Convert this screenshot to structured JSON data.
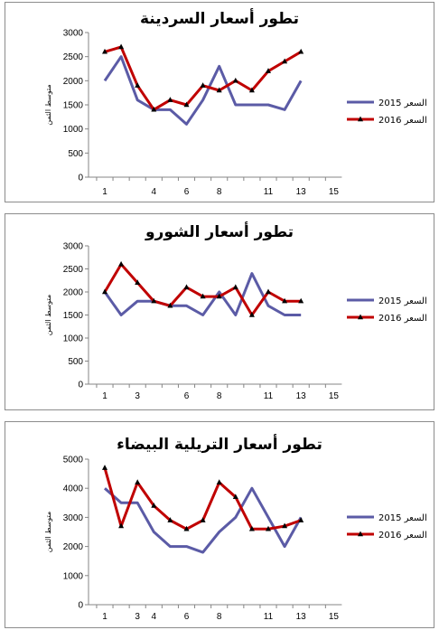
{
  "chart_data": [
    {
      "type": "line",
      "title": "تطور أسعار السردينة",
      "ylabel": "متوسط الثمن",
      "xlabel": "",
      "ylim": [
        0,
        3000
      ],
      "yticks": [
        0,
        500,
        1000,
        1500,
        2000,
        2500,
        3000
      ],
      "x": [
        1,
        2,
        3,
        4,
        5,
        6,
        7,
        8,
        9,
        10,
        11,
        12,
        13,
        14,
        15
      ],
      "xtick_labels": [
        "1",
        "",
        "",
        "4",
        "",
        "6",
        "",
        "8",
        "",
        "",
        "11",
        "",
        "13",
        "",
        "15"
      ],
      "grid": false,
      "legend": "right",
      "series": [
        {
          "name": "2015 السعر",
          "color": "#5b5ba6",
          "marker": "none",
          "values": [
            2000,
            2500,
            1600,
            1400,
            1400,
            1100,
            1600,
            2300,
            1500,
            1500,
            1500,
            1400,
            2000,
            null,
            null
          ]
        },
        {
          "name": "2016 السعر",
          "color": "#c00000",
          "marker": "triangle",
          "values": [
            2600,
            2700,
            1900,
            1400,
            1600,
            1500,
            1900,
            1800,
            2000,
            1800,
            2200,
            2400,
            2600,
            null,
            null
          ]
        }
      ]
    },
    {
      "type": "line",
      "title": "تطور أسعار الشورو",
      "ylabel": "متوسط الثمن",
      "xlabel": "",
      "ylim": [
        0,
        3000
      ],
      "yticks": [
        0,
        500,
        1000,
        1500,
        2000,
        2500,
        3000
      ],
      "x": [
        1,
        2,
        3,
        4,
        5,
        6,
        7,
        8,
        9,
        10,
        11,
        12,
        13,
        14,
        15
      ],
      "xtick_labels": [
        "1",
        "",
        "3",
        "",
        "",
        "6",
        "",
        "8",
        "",
        "",
        "11",
        "",
        "13",
        "",
        "15"
      ],
      "grid": false,
      "legend": "right",
      "series": [
        {
          "name": "2015 السعر",
          "color": "#5b5ba6",
          "marker": "none",
          "values": [
            2000,
            1500,
            1800,
            1800,
            1700,
            1700,
            1500,
            2000,
            1500,
            2400,
            1700,
            1500,
            1500,
            null,
            null
          ]
        },
        {
          "name": "2016 السعر",
          "color": "#c00000",
          "marker": "triangle",
          "values": [
            2000,
            2600,
            2200,
            1800,
            1700,
            2100,
            1900,
            1900,
            2100,
            1500,
            2000,
            1800,
            1800,
            null,
            null
          ]
        }
      ]
    },
    {
      "type": "line",
      "title": "تطور أسعار التريلية البيضاء",
      "ylabel": "متوسط الثمن",
      "xlabel": "",
      "ylim": [
        0,
        5000
      ],
      "yticks": [
        0,
        1000,
        2000,
        3000,
        4000,
        5000
      ],
      "x": [
        1,
        2,
        3,
        4,
        5,
        6,
        7,
        8,
        9,
        10,
        11,
        12,
        13,
        14,
        15
      ],
      "xtick_labels": [
        "1",
        "",
        "3",
        "4",
        "",
        "6",
        "",
        "8",
        "",
        "",
        "11",
        "",
        "13",
        "",
        "15"
      ],
      "grid": false,
      "legend": "right",
      "series": [
        {
          "name": "2015 السعر",
          "color": "#5b5ba6",
          "marker": "none",
          "values": [
            4000,
            3500,
            3500,
            2500,
            2000,
            2000,
            1800,
            2500,
            3000,
            4000,
            3000,
            2000,
            3000,
            null,
            null
          ]
        },
        {
          "name": "2016 السعر",
          "color": "#c00000",
          "marker": "triangle",
          "values": [
            4700,
            2700,
            4200,
            3400,
            2900,
            2600,
            2900,
            4200,
            3700,
            2600,
            2600,
            2700,
            2900,
            null,
            null
          ]
        }
      ]
    }
  ]
}
